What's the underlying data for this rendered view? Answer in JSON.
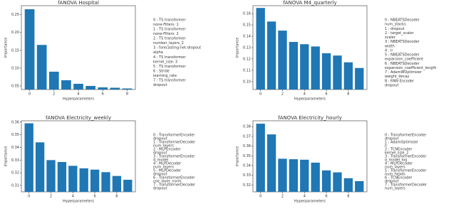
{
  "chart_data": [
    {
      "type": "bar",
      "title": "fANOVA Hospital",
      "x_label": "Hyperparameters",
      "y_label": "Importance",
      "color": "#1f77b4",
      "categories": [
        "0",
        null,
        "2",
        null,
        "4",
        null,
        "6",
        null,
        "8"
      ],
      "values": [
        0.265,
        0.165,
        0.09,
        0.066,
        0.056,
        0.05,
        0.046,
        0.045,
        0.043
      ],
      "ylim": [
        0.04,
        0.275
      ],
      "yticks": [
        0.05,
        {
          "value": 0.1,
          "label": "0.10"
        },
        0.15,
        {
          "value": 0.2,
          "label": "0.20"
        },
        0.25
      ],
      "annotations": [
        "0 : TS transformer",
        "none-Filters: 1",
        "1 : TS transformer",
        "none-Filters: 2",
        "2 : TS transformer",
        "number_layers_2",
        "3 : forecasting-net:dropout",
        "alpha",
        "4 : TS transformer",
        "kernel_size: 3",
        "5 : TS transformer",
        "6 : Stride",
        "learning_rate",
        "7 : TS transformer",
        "dropout"
      ]
    },
    {
      "type": "bar",
      "title": "fANOVA M4_quarterly",
      "x_label": "Hyperparameters",
      "y_label": "Importance",
      "color": "#1f77b4",
      "categories": [
        "0",
        null,
        "2",
        null,
        "4",
        null,
        "6",
        null,
        "8",
        null
      ],
      "values": [
        0.165,
        0.153,
        0.145,
        0.135,
        0.133,
        0.131,
        0.125,
        0.123,
        0.117,
        0.112
      ],
      "ylim": [
        0.093,
        0.167
      ],
      "yticks": [
        {
          "value": 0.1,
          "label": "0.10"
        },
        0.11,
        0.12,
        0.13,
        0.14,
        0.15,
        0.16
      ],
      "annotations": [
        "0 : NBEATSDecoder",
        "num_stacks",
        "1 : dropout",
        "2 : target_scaler",
        "scaler",
        "3 : NBEATSDecoder",
        "width",
        "4 : lr",
        "5 : NBEATSDecoder",
        "expansion_coefficient",
        "6 : NBEATSDecoder",
        "expansion_coefficient_length",
        "7 : AdamWOptimizer",
        "weight_decay",
        "8 : RNN Encoder",
        "dropout"
      ]
    },
    {
      "type": "bar",
      "title": "fANOVA Electricity_weekly",
      "x_label": "Hyperparameters",
      "y_label": "Importance",
      "color": "#1f77b4",
      "categories": [
        "0",
        null,
        "2",
        null,
        "4",
        null,
        "6",
        null,
        "8",
        null
      ],
      "values": [
        0.359,
        0.344,
        0.33,
        0.3285,
        0.3255,
        0.3235,
        0.3225,
        0.3205,
        0.3175,
        0.3145
      ],
      "ylim": [
        0.305,
        0.361
      ],
      "yticks": [
        0.31,
        0.32,
        0.33,
        0.34,
        0.35,
        0.36
      ],
      "annotations": [
        "0 : TransformerEncoder",
        "dropout",
        "1 : TransformerDecoder",
        "num_layers",
        "2 : MLPEncoder",
        "dropout",
        "3 : TransformerEncoder",
        "d_model",
        "4 : MLPDecoder",
        "num_layers",
        "5 : MLPDecoder",
        "dropout",
        "6 : TransformerEncoder",
        "use_layer_norm",
        "7 : TransformerDecoder",
        "dropout"
      ]
    },
    {
      "type": "bar",
      "title": "fANOVA Electricity_hourly",
      "x_label": "Hyperparameters",
      "y_label": "Importance",
      "color": "#1f77b4",
      "categories": [
        "0",
        null,
        "2",
        null,
        "4",
        null,
        "6",
        null,
        "8",
        null
      ],
      "values": [
        0.383,
        0.372,
        0.347,
        0.3465,
        0.346,
        0.343,
        0.335,
        0.333,
        0.327,
        0.324
      ],
      "ylim": [
        0.313,
        0.386
      ],
      "yticks": [
        0.32,
        0.33,
        0.34,
        0.35,
        0.36,
        0.37,
        0.38
      ],
      "annotations": [
        "0 : TransformerEncoder",
        "dropout",
        "1 : AdamOptimizer",
        "lr",
        "2 : TCNEncoder",
        "kernel_size_2",
        "3 : TransformerEncoder",
        "d_model_log",
        "4 : MLPDecoder",
        "num_layers",
        "5 : TransformerEncoder",
        "num_heads",
        "6 : TCNEncoder",
        "dropout",
        "7 : TransformerDecoder",
        "num_layers"
      ]
    }
  ]
}
